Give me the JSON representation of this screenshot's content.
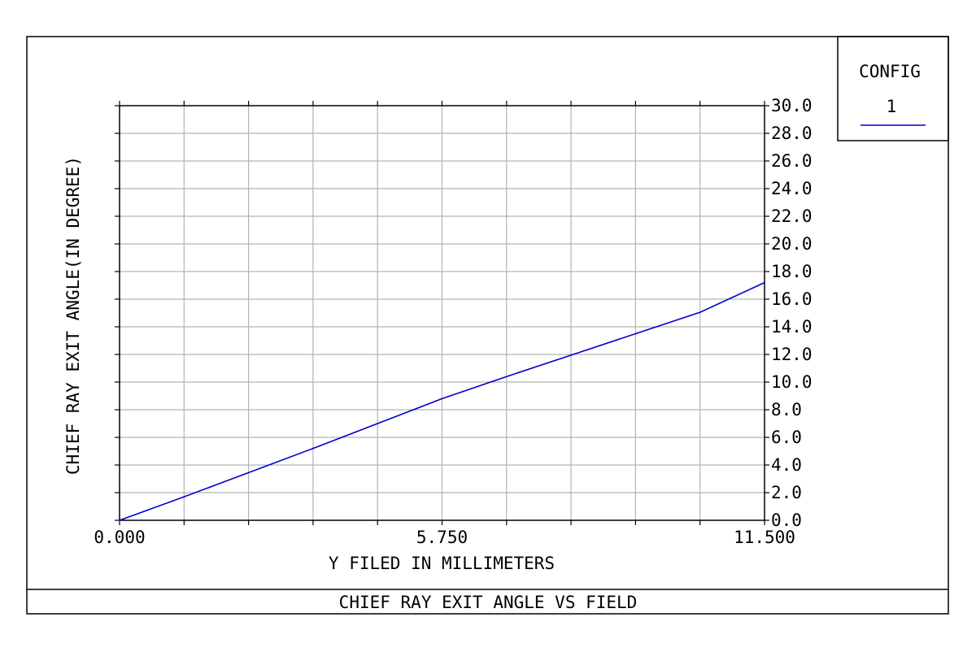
{
  "chart_data": {
    "type": "line",
    "title": "CHIEF RAY EXIT ANGLE VS FIELD",
    "xlabel": "Y FILED IN MILLIMETERS",
    "ylabel": "CHIEF RAY EXIT ANGLE(IN DEGREE)",
    "xlim": [
      0,
      11.5
    ],
    "ylim": [
      0,
      30
    ],
    "x_tick_labels": [
      "0.000",
      "5.750",
      "11.500"
    ],
    "x_minor_divisions": 10,
    "y_tick_labels": [
      "0.0",
      "2.0",
      "4.0",
      "6.0",
      "8.0",
      "10.0",
      "12.0",
      "14.0",
      "16.0",
      "18.0",
      "20.0",
      "22.0",
      "24.0",
      "26.0",
      "28.0",
      "30.0"
    ],
    "grid": true,
    "series": [
      {
        "name": "1",
        "color": "#0000cc",
        "x": [
          0,
          1.15,
          2.3,
          3.45,
          4.6,
          5.75,
          6.9,
          8.05,
          9.2,
          10.35,
          11.5
        ],
        "y": [
          0,
          1.7,
          3.45,
          5.2,
          7.0,
          8.8,
          10.4,
          11.95,
          13.5,
          15.05,
          17.2
        ]
      }
    ],
    "legend": {
      "title": "CONFIG",
      "placement": "top-right",
      "entries": [
        "1"
      ]
    }
  }
}
